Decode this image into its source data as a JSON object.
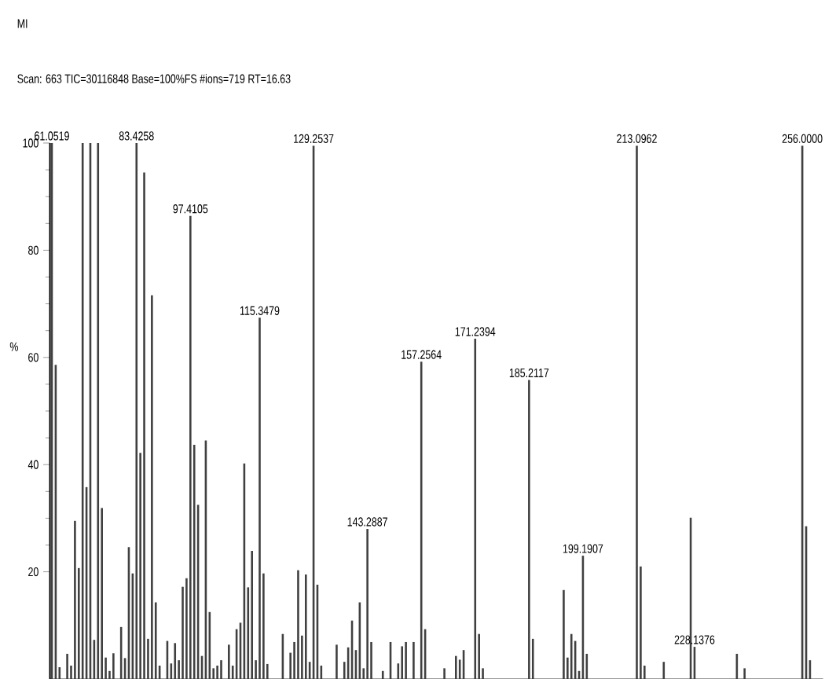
{
  "chart_data": {
    "type": "bar",
    "title": "MI",
    "subtitle": "Scan: 663  TIC=30116848  Base=100%FS  #ions=719  RT=16.63",
    "ylabel": "%",
    "categories": [
      null,
      null,
      null,
      null,
      null,
      null,
      null,
      null,
      null,
      null,
      null,
      null,
      null,
      null,
      null,
      null,
      null,
      null,
      null,
      null,
      null,
      null,
      null,
      null,
      null,
      null,
      null,
      null,
      null,
      null,
      null,
      null,
      null,
      null,
      null,
      null,
      null,
      null,
      null,
      null,
      null,
      null,
      null,
      null,
      null,
      null,
      null,
      null,
      null,
      null,
      null,
      null,
      null,
      null,
      null,
      null,
      null,
      null,
      null,
      null,
      null,
      null,
      null,
      null,
      null,
      null,
      null,
      null,
      null,
      null,
      null,
      null,
      null,
      null,
      null,
      null,
      null,
      null,
      null,
      null,
      null,
      null,
      null,
      null,
      null,
      null,
      null,
      null,
      null,
      null,
      null,
      null,
      null,
      null,
      null,
      null,
      null,
      null,
      null,
      null,
      null,
      null,
      null,
      null,
      null,
      null,
      null,
      null,
      null,
      null,
      null,
      null,
      null,
      null,
      null,
      null,
      null,
      null,
      null,
      null,
      null,
      null,
      null,
      null,
      null,
      null,
      null,
      null,
      null,
      null,
      null,
      null,
      null,
      null,
      null,
      null,
      null,
      null,
      null,
      null,
      null,
      null,
      null,
      null,
      null,
      null,
      null,
      null,
      null,
      null,
      null,
      null,
      null,
      null,
      null,
      null,
      null,
      null,
      null,
      null,
      null,
      null,
      null,
      null,
      null,
      null,
      null,
      null,
      null,
      null,
      null,
      null,
      null,
      null,
      null,
      null,
      null,
      null,
      null,
      null,
      null,
      null,
      null,
      null,
      null,
      null,
      null,
      null,
      null,
      null,
      null,
      null,
      null,
      null,
      null,
      null,
      null,
      null,
      null,
      null,
      null
    ],
    "values": [
      100,
      58.6,
      2.2,
      0,
      4.7,
      2.5,
      29.5,
      20.7,
      100,
      35.8,
      100,
      7.3,
      100,
      31.9,
      4,
      1.5,
      4.8,
      0,
      9.7,
      3.9,
      24.6,
      19.7,
      100,
      42.2,
      94.5,
      7.5,
      71.6,
      14.3,
      2.5,
      0,
      7.1,
      2.9,
      6.7,
      3.5,
      17.2,
      18.8,
      86.4,
      43.7,
      32.5,
      4.3,
      44.5,
      12.5,
      2,
      2.5,
      3.5,
      0,
      6.4,
      2.5,
      9.3,
      10.5,
      40.2,
      17.1,
      23.9,
      3.5,
      67.4,
      19.7,
      2.8,
      0,
      0,
      0,
      8.4,
      0,
      4.9,
      6.9,
      20.3,
      8.1,
      19.5,
      3.2,
      99.5,
      17.6,
      2.5,
      0,
      0,
      0,
      6.4,
      0,
      3.2,
      5.9,
      10.9,
      5.4,
      14.3,
      2,
      28,
      6.9,
      0,
      0,
      1.5,
      0,
      6.9,
      0,
      2.9,
      6.1,
      6.9,
      0,
      6.9,
      0,
      59.2,
      9.3,
      0,
      0,
      0,
      0,
      2,
      0,
      0,
      4.3,
      3.6,
      5.4,
      0,
      0,
      63.5,
      8.4,
      2,
      0,
      0,
      0,
      0,
      0,
      0,
      0,
      0,
      0,
      0,
      0,
      55.8,
      7.5,
      0,
      0,
      0,
      0,
      0,
      0,
      0,
      16.6,
      4,
      8.4,
      7.1,
      1.5,
      23,
      4.7,
      0,
      0,
      0,
      0,
      0,
      0,
      0,
      0,
      0,
      0,
      0,
      0,
      99.5,
      21,
      2.5,
      0,
      0,
      0,
      0,
      3.2,
      0,
      0,
      0,
      0,
      0,
      0,
      30.1,
      6,
      0,
      0,
      0,
      0,
      0,
      0,
      0,
      0,
      0,
      0,
      4.7,
      0,
      2,
      0,
      0,
      0,
      0,
      0,
      0,
      0,
      0,
      0,
      0,
      0,
      0,
      0,
      0,
      99.5,
      28.5,
      3.5,
      0,
      0,
      0
    ],
    "color": "#404040",
    "ylim": [
      0,
      100
    ],
    "yticks": [
      20,
      40,
      60,
      80,
      100
    ],
    "tick_labels": "y",
    "annotations": [
      {
        "text": "61.0519",
        "y": 100
      },
      {
        "text": "83.4258",
        "y": 100
      },
      {
        "text": "97.4105",
        "y": 86.4
      },
      {
        "text": "115.3479",
        "y": 67.4
      },
      {
        "text": "129.2537",
        "y": 99.5
      },
      {
        "text": "143.2887",
        "y": 28
      },
      {
        "text": "157.2564",
        "y": 59.2
      },
      {
        "text": "171.2394",
        "y": 63.5
      },
      {
        "text": "185.2117",
        "y": 55.8
      },
      {
        "text": "199.1907",
        "y": 23
      },
      {
        "text": "213.0962",
        "y": 99.5
      },
      {
        "text": "228.1376",
        "y": 6
      },
      {
        "text": "256.0000",
        "y": 99.5
      }
    ]
  }
}
